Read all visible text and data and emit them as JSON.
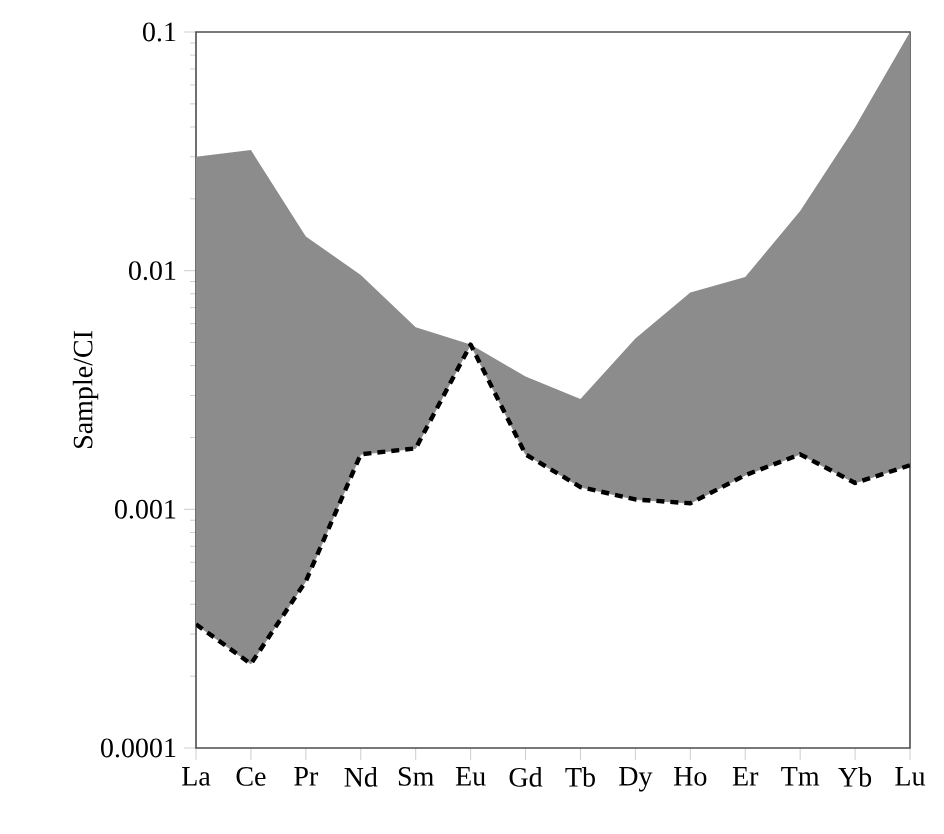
{
  "chart_data": {
    "type": "line",
    "ylabel": "Sample/CI",
    "log": true,
    "grid": false,
    "marker": "none",
    "categories": [
      "La",
      "Ce",
      "Pr",
      "Nd",
      "Sm",
      "Eu",
      "Gd",
      "Tb",
      "Dy",
      "Ho",
      "Er",
      "Tm",
      "Yb",
      "Lu"
    ],
    "ylim": [
      0.0001,
      0.1
    ],
    "yticks": [
      0.0001,
      0.001,
      0.01,
      0.1
    ],
    "series": [
      {
        "color": "#000000",
        "line_style": "dashed",
        "values": [
          0.00033,
          0.000225,
          0.0005,
          0.0017,
          0.0018,
          0.0049,
          0.0017,
          0.00124,
          0.0011,
          0.00106,
          0.00139,
          0.0017,
          0.00129,
          0.00153
        ],
        "lower": [
          0.00033,
          0.000225,
          0.0005,
          0.0017,
          0.0018,
          0.0049,
          0.0017,
          0.00124,
          0.0011,
          0.00106,
          0.00139,
          0.0017,
          0.00129,
          0.00153
        ],
        "upper": [
          0.03,
          0.032,
          0.0139,
          0.0096,
          0.0058,
          0.0049,
          0.0036,
          0.0029,
          0.0052,
          0.0081,
          0.0094,
          0.0178,
          0.04,
          0.1
        ]
      }
    ]
  }
}
